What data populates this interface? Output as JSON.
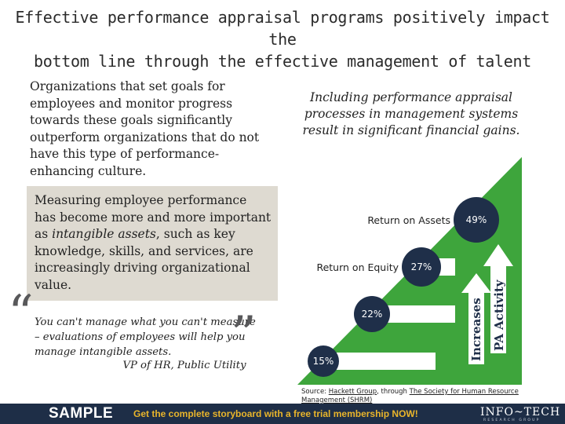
{
  "title": {
    "line1": "Effective performance appraisal programs positively impact the",
    "line2": "bottom line through the effective management of talent"
  },
  "left": {
    "intro": "Organizations that set goals for employees and monitor progress towards these goals significantly outperform organizations that do not have this type of performance-enhancing culture.",
    "highlight_before": "Measuring employee performance has become more and more important as ",
    "highlight_emphasis": "intangible assets",
    "highlight_after": ", such as key knowledge, skills, and services, are increasingly driving organizational value.",
    "quote": "You can't manage what you can't measure – evaluations of employees will help you manage intangible assets.",
    "quote_author": "VP of HR, Public Utility"
  },
  "chart_data": {
    "type": "bar",
    "title": "Including performance appraisal processes in management systems result in significant financial gains.",
    "values": [
      15,
      22,
      27,
      49
    ],
    "labels": [
      "15%",
      "22%",
      "27%",
      "49%"
    ],
    "category_labels": [
      "",
      "",
      "Return on Equity",
      "Return on Assets"
    ],
    "arrow_labels": [
      "Increases",
      "PA Activity"
    ],
    "colors": {
      "triangle": "#3ea53c",
      "bar": "#ffffff",
      "circle": "#1f2f49",
      "arrow": "#ffffff"
    }
  },
  "source": {
    "prefix": "Source: ",
    "link1": "Hackett Group",
    "middle": ", through ",
    "link2": "The Society for Human Resource Management (SHRM)"
  },
  "banner": {
    "sample": "SAMPLE",
    "cta": "Get the complete storyboard with a free trial membership NOW!",
    "logo": "INFO~TECH",
    "logo_sub": "RESEARCH GROUP"
  }
}
